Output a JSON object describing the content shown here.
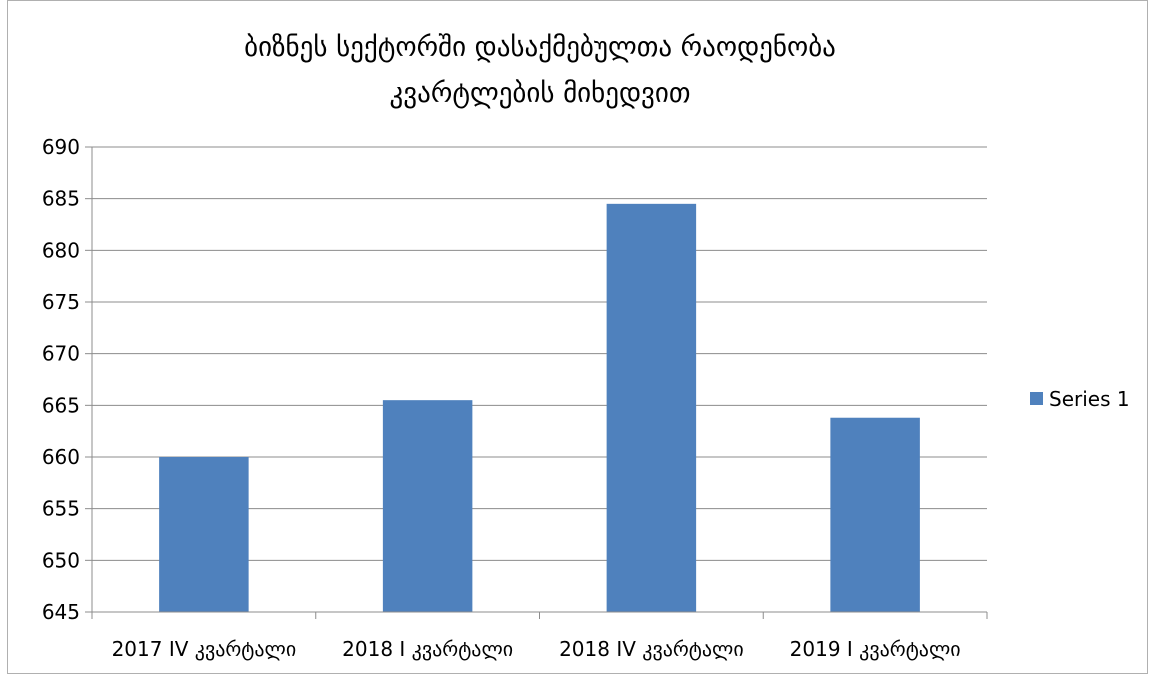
{
  "chart_data": {
    "type": "bar",
    "title_lines": [
      "ბიზნეს სექტორში დასაქმებულთა რაოდენობა",
      "კვარტლების მიხედვით"
    ],
    "categories": [
      "2017 IV კვარტალი",
      "2018 I კვარტალი",
      "2018 IV კვარტალი",
      "2019 I კვარტალი"
    ],
    "series": [
      {
        "name": "Series 1",
        "values": [
          660,
          665.5,
          684.5,
          663.8
        ],
        "color": "#4f81bd"
      }
    ],
    "yticks": [
      "645",
      "650",
      "655",
      "660",
      "665",
      "670",
      "675",
      "680",
      "685",
      "690"
    ],
    "ylim": [
      645,
      690
    ],
    "grid": true,
    "legend_position": "right"
  }
}
